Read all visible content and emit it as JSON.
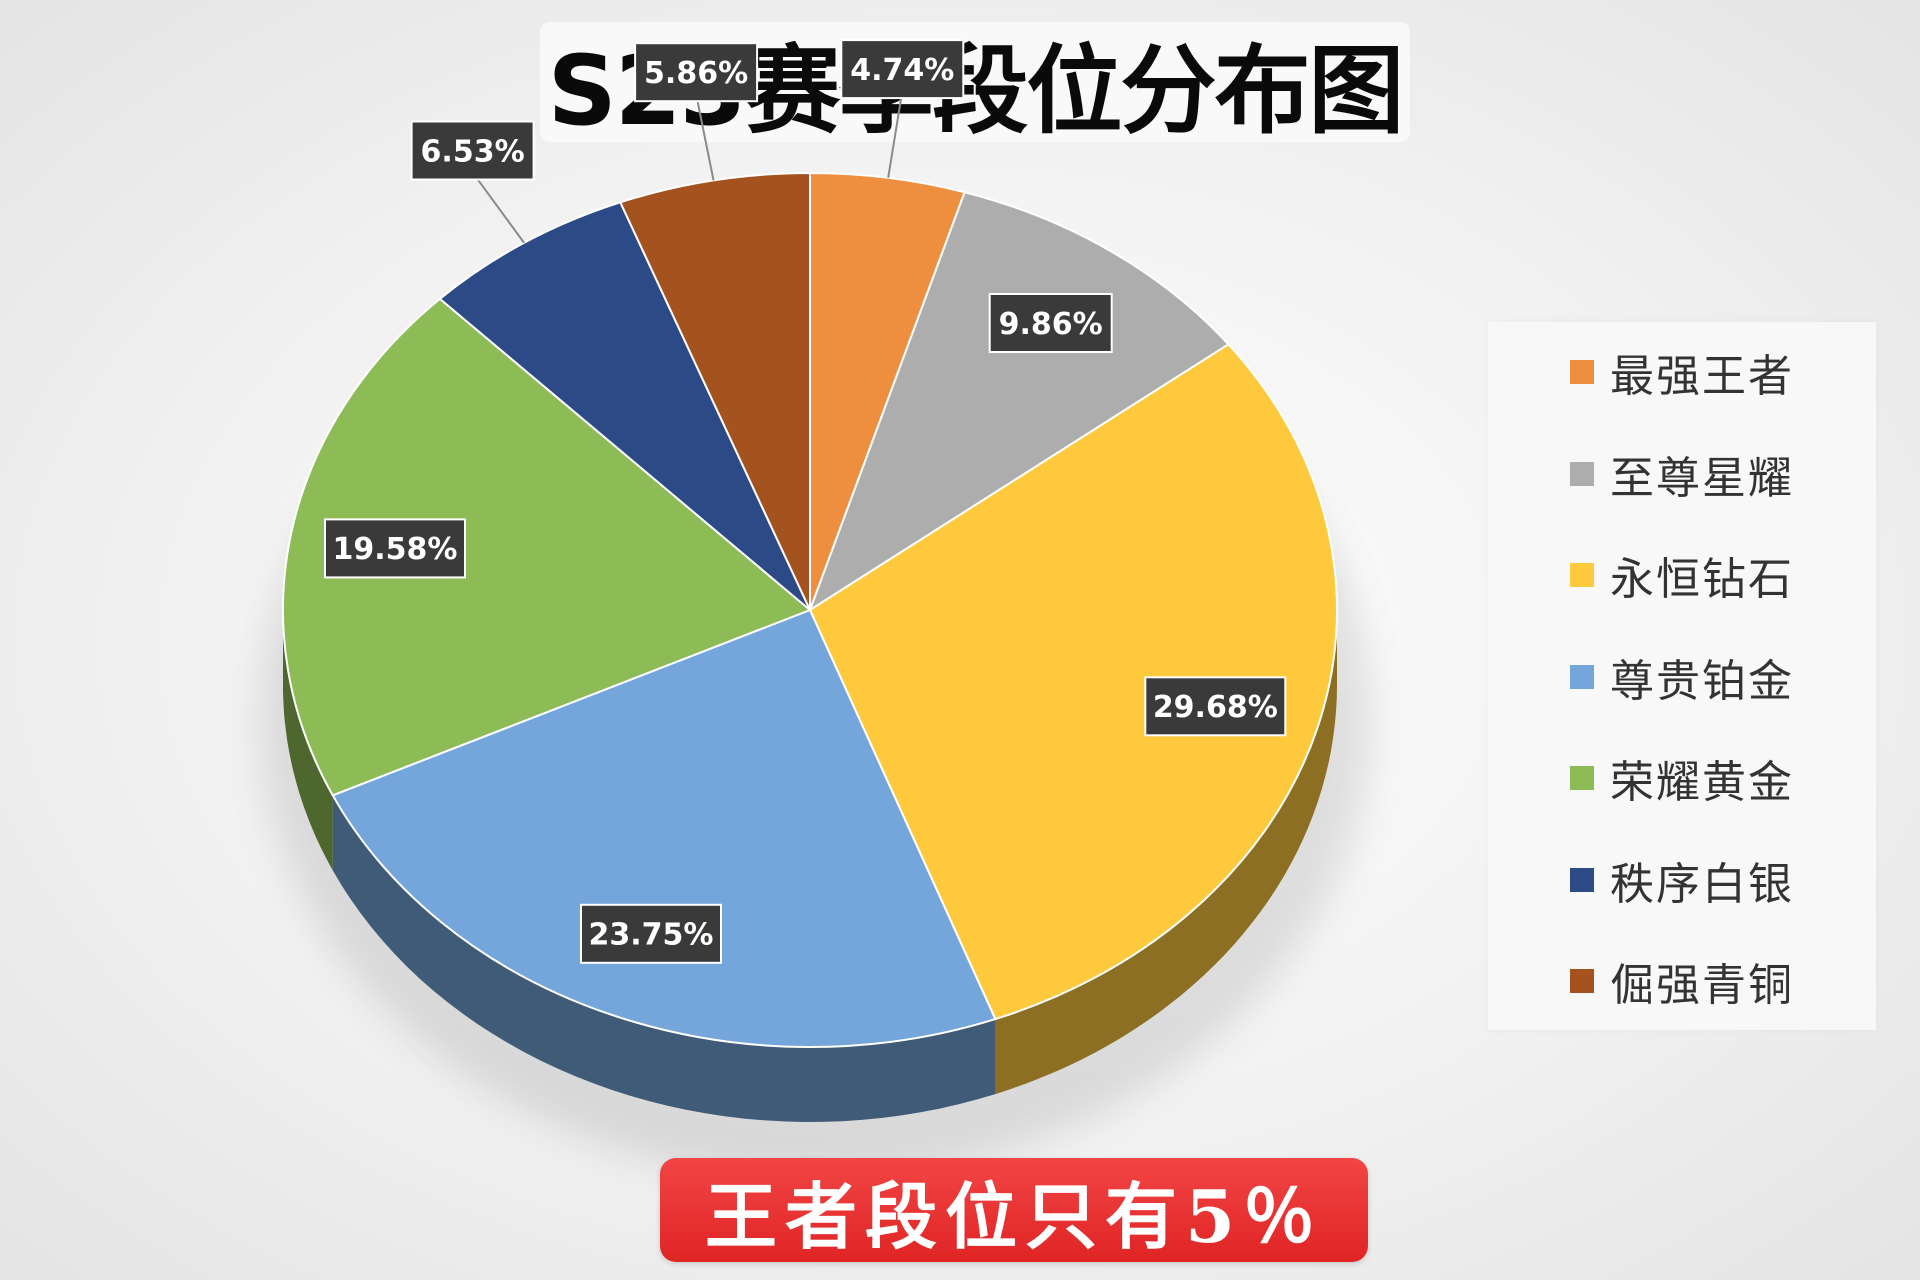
{
  "banner": {
    "text": "王者段位只有5％"
  },
  "chart_data": {
    "type": "pie",
    "title": "S23赛季段位分布图",
    "legend_position": "right",
    "slices": [
      {
        "name": "最强王者",
        "value": 4.74,
        "label": "4.74%",
        "color": "#ED8F3F"
      },
      {
        "name": "至尊星耀",
        "value": 9.86,
        "label": "9.86%",
        "color": "#ADADAD"
      },
      {
        "name": "永恒钻石",
        "value": 29.68,
        "label": "29.68%",
        "color": "#FFC93D"
      },
      {
        "name": "尊贵铂金",
        "value": 23.75,
        "label": "23.75%",
        "color": "#75A6DB"
      },
      {
        "name": "荣耀黄金",
        "value": 19.58,
        "label": "19.58%",
        "color": "#8DBB56"
      },
      {
        "name": "秩序白银",
        "value": 6.53,
        "label": "6.53%",
        "color": "#2C4A86"
      },
      {
        "name": "倔强青铜",
        "value": 5.86,
        "label": "5.86%",
        "color": "#A4531E"
      }
    ]
  }
}
